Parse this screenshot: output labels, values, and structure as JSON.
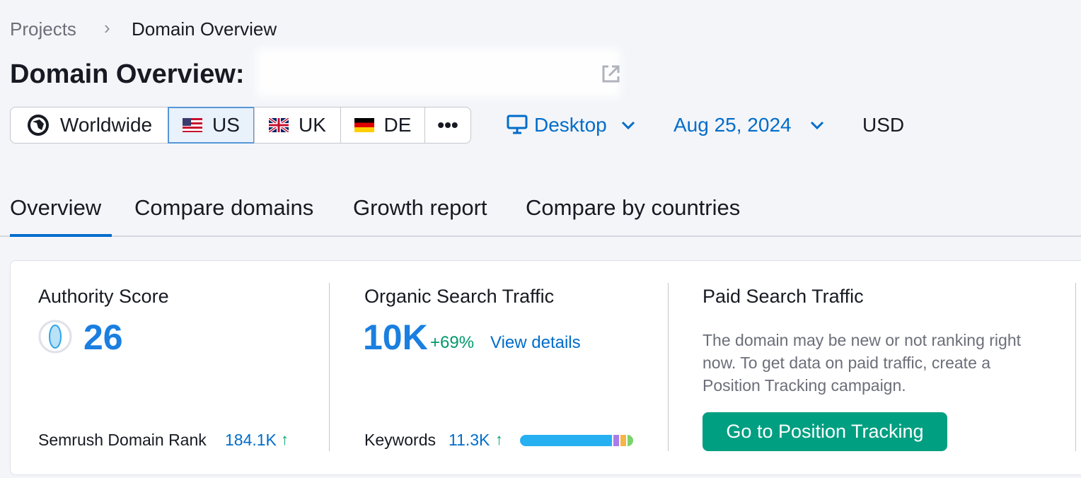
{
  "breadcrumb": [
    "Projects",
    "Domain Overview"
  ],
  "title": "Domain Overview:",
  "regions": [
    "Worldwide",
    "US",
    "UK",
    "DE"
  ],
  "device": "Desktop",
  "date": "Aug 25, 2024",
  "currency": "USD",
  "tabs": [
    "Overview",
    "Compare domains",
    "Growth report",
    "Compare by countries"
  ],
  "authority": {
    "title": "Authority Score",
    "score": 26,
    "rank_label": "Semrush Domain Rank",
    "rank": "184.1K"
  },
  "organic": {
    "title": "Organic Search Traffic",
    "value": "10K",
    "change": "+69%",
    "link": "View details",
    "keywords_label": "Keywords",
    "keywords": "11.3K"
  },
  "paid": {
    "title": "Paid Search Traffic",
    "message": "The domain may be new or not ranking right now. To get data on paid traffic, create a Position Tracking campaign.",
    "button": "Go to Position Tracking"
  }
}
